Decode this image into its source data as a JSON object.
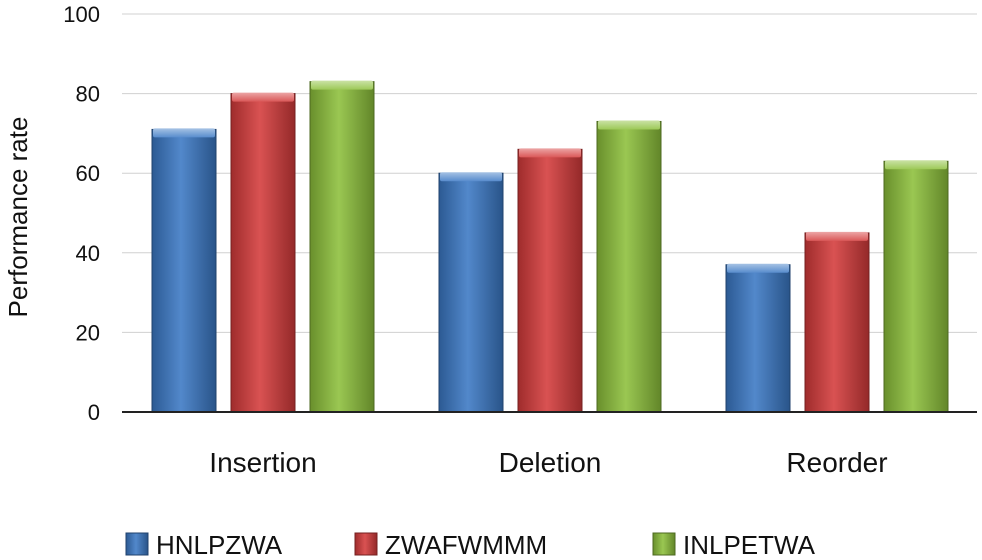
{
  "chart_data": {
    "type": "bar",
    "title": "",
    "xlabel": "",
    "ylabel": "Performance rate",
    "categories": [
      "Insertion",
      "Deletion",
      "Reorder"
    ],
    "series": [
      {
        "name": "HNLPZWA",
        "color": "#3a78c4",
        "values": [
          71,
          60,
          37
        ]
      },
      {
        "name": "ZWAFWMMM",
        "color": "#d43a3a",
        "values": [
          80,
          66,
          45
        ]
      },
      {
        "name": "INLPETWA",
        "color": "#8cbf3a",
        "values": [
          83,
          73,
          63
        ]
      }
    ],
    "ylim": [
      0,
      100
    ],
    "yticks": [
      0,
      20,
      40,
      60,
      80,
      100
    ],
    "grid": true,
    "legend": "bottom"
  }
}
